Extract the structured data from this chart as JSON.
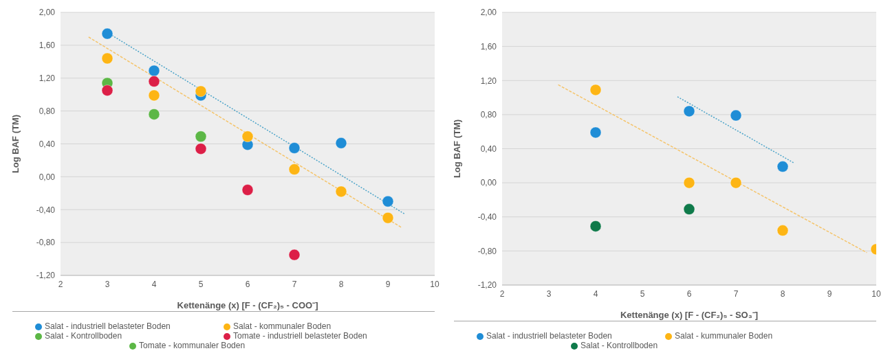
{
  "chart_data": [
    {
      "type": "scatter",
      "xlabel": "Kettenänge (x) [F - (CF₂)₅ - COO⁻]",
      "ylabel": "Log BAF (TM)",
      "xlim": [
        2,
        10
      ],
      "xticks": [
        2,
        3,
        4,
        5,
        6,
        7,
        8,
        9,
        10
      ],
      "ylim": [
        -1.2,
        2.0
      ],
      "yticks": [
        {
          "value": -1.2,
          "label": "-1,20"
        },
        {
          "value": -0.8,
          "label": "-0,80"
        },
        {
          "value": -0.4,
          "label": "-0,40"
        },
        {
          "value": 0,
          "label": "0,00"
        },
        {
          "value": 0.4,
          "label": "0,40"
        },
        {
          "value": 0.8,
          "label": "0,80"
        },
        {
          "value": 1.2,
          "label": "1,20"
        },
        {
          "value": 1.6,
          "label": "1,60"
        },
        {
          "value": 2.0,
          "label": "2,00"
        }
      ],
      "grid": "y",
      "legend": "bottom",
      "marker": "circle",
      "series": [
        {
          "name": "Salat - industriell belasteter Boden",
          "color": "#1f8dd6",
          "x": [
            3,
            4,
            5,
            6,
            7,
            8,
            9
          ],
          "values": [
            1.74,
            1.29,
            0.99,
            0.39,
            0.35,
            0.41,
            -0.3
          ]
        },
        {
          "name": "Salat - kommunaler Boden",
          "color": "#fdb515",
          "x": [
            3,
            4,
            5,
            6,
            7,
            8,
            9
          ],
          "values": [
            1.44,
            0.99,
            1.04,
            0.49,
            0.09,
            -0.18,
            -0.5
          ]
        },
        {
          "name": "Salat - Kontrollboden",
          "color": "#5cb746",
          "x": [
            3,
            4,
            5
          ],
          "values": [
            1.14,
            0.76,
            0.49
          ]
        },
        {
          "name": "Tomate - industriell belasteter Boden",
          "color": "#dc1f47",
          "x": [
            3,
            4,
            5,
            6,
            7
          ],
          "values": [
            1.05,
            1.16,
            0.34,
            -0.16,
            -0.95
          ]
        },
        {
          "name": "Tomate - kommunaler Boden",
          "color": "#5cb746"
        },
        {
          "type": "line",
          "color": "#4aa3c8",
          "line_style": "dotted",
          "marker": "none",
          "x": [
            3.1,
            9.35
          ],
          "values": [
            1.72,
            -0.45
          ]
        },
        {
          "type": "line",
          "color": "#f5c46a",
          "line_style": "dashed",
          "marker": "none",
          "x": [
            2.6,
            9.3
          ],
          "values": [
            1.7,
            -0.62
          ]
        }
      ]
    },
    {
      "type": "scatter",
      "xlabel": "Kettenänge (x) [F - (CF₂)₅ - SO₃⁻]",
      "ylabel": "Log BAF (TM)",
      "xlim": [
        2,
        10
      ],
      "xticks": [
        2,
        3,
        4,
        5,
        6,
        7,
        8,
        9,
        10
      ],
      "ylim": [
        -1.2,
        2.0
      ],
      "yticks": [
        {
          "value": -1.2,
          "label": "-1,20"
        },
        {
          "value": -0.8,
          "label": "-0,80"
        },
        {
          "value": -0.4,
          "label": "-0,40"
        },
        {
          "value": 0,
          "label": "0,00"
        },
        {
          "value": 0.4,
          "label": "0,40"
        },
        {
          "value": 0.8,
          "label": "0,80"
        },
        {
          "value": 1.2,
          "label": "1,20"
        },
        {
          "value": 1.6,
          "label": "1,60"
        },
        {
          "value": 2.0,
          "label": "2,00"
        }
      ],
      "grid": "y",
      "legend": "bottom",
      "marker": "circle",
      "series": [
        {
          "name": "Salat - industriell belasteter Boden",
          "color": "#1f8dd6",
          "x": [
            4,
            6,
            7,
            8
          ],
          "values": [
            0.59,
            0.84,
            0.79,
            0.19
          ]
        },
        {
          "name": "Salat - kummunaler Boden",
          "color": "#fdb515",
          "x": [
            4,
            6,
            7,
            8,
            10
          ],
          "values": [
            1.09,
            0.0,
            0.0,
            -0.56,
            -0.78
          ]
        },
        {
          "name": "Salat - Kontrollboden",
          "color": "#0f7a4a",
          "x": [
            4,
            6
          ],
          "values": [
            -0.51,
            -0.31
          ]
        },
        {
          "type": "line",
          "color": "#4aa3c8",
          "line_style": "dotted",
          "marker": "none",
          "x": [
            5.75,
            8.25
          ],
          "values": [
            1.01,
            0.23
          ]
        },
        {
          "type": "line",
          "color": "#f5c46a",
          "line_style": "dashed",
          "marker": "none",
          "x": [
            3.2,
            9.8
          ],
          "values": [
            1.15,
            -0.82
          ]
        }
      ]
    }
  ]
}
